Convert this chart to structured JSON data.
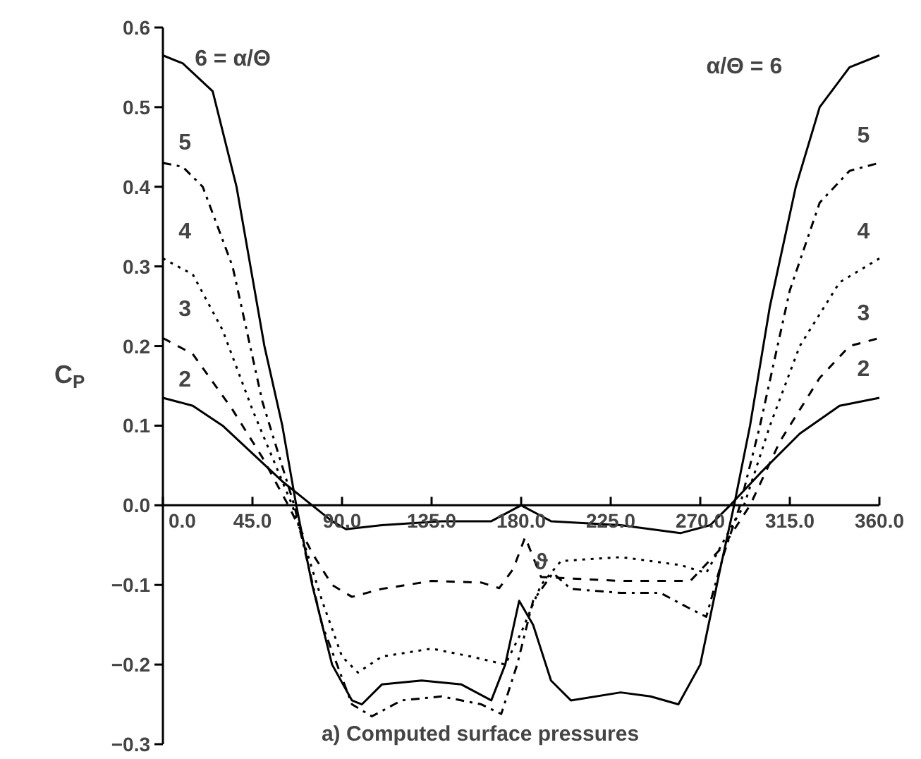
{
  "chart_data": {
    "type": "line",
    "ylabel": "C$_{P}$",
    "xlim": [
      0,
      360
    ],
    "ylim": [
      -0.3,
      0.6
    ],
    "xticks": [
      {
        "value": 0,
        "label": "0.0"
      },
      {
        "value": 45,
        "label": "45.0"
      },
      {
        "value": 90,
        "label": "90.0"
      },
      {
        "value": 135,
        "label": "135.0"
      },
      {
        "value": 180,
        "label": "180.0"
      },
      {
        "value": 225,
        "label": "225.0"
      },
      {
        "value": 270,
        "label": "270.0"
      },
      {
        "value": 315,
        "label": "315.0"
      },
      {
        "value": 360,
        "label": "360.0"
      }
    ],
    "yticks": [
      {
        "value": -0.3,
        "label": "−0.3"
      },
      {
        "value": -0.2,
        "label": "−0.2"
      },
      {
        "value": -0.1,
        "label": "−0.1"
      },
      {
        "value": 0,
        "label": "0.0"
      },
      {
        "value": 0.1,
        "label": "0.1"
      },
      {
        "value": 0.2,
        "label": "0.2"
      },
      {
        "value": 0.3,
        "label": "0.3"
      },
      {
        "value": 0.4,
        "label": "0.4"
      },
      {
        "value": 0.5,
        "label": "0.5"
      },
      {
        "value": 0.6,
        "label": "0.6"
      }
    ],
    "series": [
      {
        "color": "#000000",
        "line_style": "solid",
        "x": [
          0,
          10,
          25,
          37,
          51,
          60,
          67,
          75,
          85,
          95,
          100,
          110,
          130,
          150,
          165,
          172,
          179,
          186,
          195,
          205,
          230,
          245,
          259,
          270,
          280,
          287,
          295,
          305,
          318,
          330,
          345,
          360
        ],
        "values": [
          0.565,
          0.555,
          0.52,
          0.4,
          0.2,
          0.1,
          0.0,
          -0.1,
          -0.2,
          -0.245,
          -0.25,
          -0.225,
          -0.22,
          -0.225,
          -0.245,
          -0.2,
          -0.12,
          -0.15,
          -0.22,
          -0.245,
          -0.235,
          -0.24,
          -0.25,
          -0.2,
          -0.08,
          0.0,
          0.1,
          0.25,
          0.4,
          0.5,
          0.55,
          0.565
        ]
      },
      {
        "color": "#000000",
        "line_style": "dashdot",
        "x": [
          0,
          10,
          20,
          35,
          50,
          66,
          80,
          95,
          105,
          120,
          140,
          160,
          170,
          178,
          186,
          196,
          205,
          230,
          250,
          265,
          273,
          282,
          290,
          300,
          315,
          330,
          345,
          360
        ],
        "values": [
          0.43,
          0.425,
          0.4,
          0.3,
          0.13,
          0.0,
          -0.15,
          -0.25,
          -0.265,
          -0.245,
          -0.24,
          -0.25,
          -0.262,
          -0.2,
          -0.12,
          -0.085,
          -0.105,
          -0.11,
          -0.11,
          -0.13,
          -0.14,
          -0.06,
          0.0,
          0.1,
          0.27,
          0.38,
          0.42,
          0.43
        ]
      },
      {
        "color": "#000000",
        "line_style": "dotted",
        "x": [
          0,
          15,
          30,
          45,
          65,
          80,
          90,
          98,
          110,
          135,
          155,
          172,
          180,
          190,
          200,
          230,
          260,
          273,
          285,
          292,
          305,
          320,
          340,
          360
        ],
        "values": [
          0.31,
          0.29,
          0.22,
          0.12,
          0.0,
          -0.12,
          -0.19,
          -0.21,
          -0.19,
          -0.18,
          -0.19,
          -0.2,
          -0.16,
          -0.1,
          -0.07,
          -0.065,
          -0.075,
          -0.085,
          -0.03,
          0.0,
          0.1,
          0.2,
          0.28,
          0.31
        ]
      },
      {
        "color": "#000000",
        "line_style": "dashed",
        "x": [
          0,
          15,
          35,
          50,
          63,
          75,
          85,
          95,
          110,
          135,
          160,
          169,
          176,
          182,
          190,
          230,
          265,
          282,
          295,
          310,
          330,
          345,
          360
        ],
        "values": [
          0.21,
          0.19,
          0.12,
          0.06,
          0.0,
          -0.06,
          -0.1,
          -0.115,
          -0.105,
          -0.095,
          -0.097,
          -0.104,
          -0.08,
          -0.04,
          -0.09,
          -0.095,
          -0.095,
          -0.05,
          0.0,
          0.08,
          0.16,
          0.2,
          0.21
        ]
      },
      {
        "color": "#000000",
        "line_style": "solid",
        "x": [
          0,
          15,
          30,
          45,
          60,
          75,
          85,
          92,
          110,
          140,
          165,
          180,
          195,
          230,
          260,
          275,
          285,
          300,
          320,
          340,
          360
        ],
        "values": [
          0.135,
          0.125,
          0.1,
          0.065,
          0.03,
          0.0,
          -0.02,
          -0.03,
          -0.025,
          -0.02,
          -0.02,
          0.0,
          -0.02,
          -0.025,
          -0.035,
          -0.025,
          0.0,
          0.04,
          0.09,
          0.125,
          0.135
        ]
      }
    ],
    "annotations": [
      "6 = α/Θ",
      "α/Θ = 6",
      "5",
      "5",
      "4",
      "4",
      "3",
      "3",
      "2",
      "2",
      "ϑ",
      "a) Computed surface pressures"
    ]
  }
}
